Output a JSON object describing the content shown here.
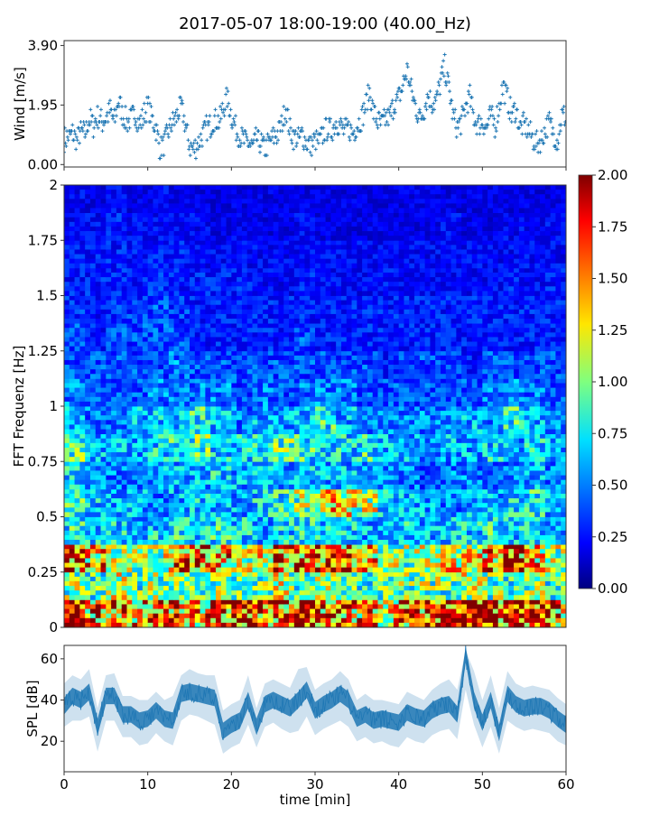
{
  "title": "2017-05-07 18:00-19:00 (40.00_Hz)",
  "chart_data": [
    {
      "type": "scatter",
      "ylabel": "Wind [m/s]",
      "xlim": [
        0,
        60
      ],
      "ylim": [
        -0.08,
        4.06
      ],
      "yticks": [
        0.0,
        1.95,
        3.9
      ],
      "ytick_labels": [
        "0.00",
        "1.95",
        "3.90"
      ],
      "xticks": [
        0,
        10,
        20,
        30,
        40,
        50,
        60
      ],
      "marker": "+",
      "color": "#1f77b4",
      "x_step_min": 0.5,
      "values": [
        0.8,
        0.9,
        1.0,
        0.8,
        1.1,
        1.0,
        1.5,
        1.3,
        1.6,
        1.4,
        1.5,
        1.8,
        1.4,
        2.1,
        1.6,
        1.4,
        1.5,
        1.7,
        1.3,
        1.6,
        1.9,
        1.5,
        1.2,
        0.5,
        0.7,
        1.1,
        1.4,
        1.6,
        1.9,
        1.3,
        0.6,
        0.5,
        0.7,
        0.9,
        1.2,
        1.3,
        1.5,
        1.4,
        1.8,
        2.2,
        1.6,
        1.2,
        0.9,
        0.8,
        0.7,
        0.6,
        0.8,
        0.7,
        0.5,
        0.7,
        0.9,
        1.0,
        1.3,
        1.9,
        1.1,
        0.9,
        0.8,
        1.0,
        0.7,
        0.6,
        0.8,
        0.7,
        1.0,
        1.2,
        1.1,
        1.4,
        1.3,
        1.1,
        1.2,
        1.0,
        1.3,
        1.5,
        1.9,
        2.4,
        1.7,
        1.4,
        1.3,
        1.5,
        1.6,
        2.0,
        2.2,
        2.6,
        3.1,
        2.4,
        1.9,
        1.5,
        1.8,
        2.3,
        2.0,
        2.1,
        2.7,
        3.2,
        2.5,
        1.6,
        1.2,
        1.4,
        1.9,
        2.2,
        1.5,
        1.3,
        1.4,
        1.2,
        1.6,
        1.3,
        1.9,
        2.6,
        2.1,
        1.6,
        1.8,
        1.2,
        1.3,
        1.1,
        0.9,
        0.7,
        0.8,
        1.1,
        1.4,
        1.0,
        0.8,
        1.6
      ]
    },
    {
      "type": "heatmap",
      "ylabel": "FFT Frequenz [Hz]",
      "xlim": [
        0,
        60
      ],
      "ylim": [
        0,
        2
      ],
      "yticks": [
        0,
        0.25,
        0.5,
        0.75,
        1,
        1.25,
        1.5,
        1.75,
        2
      ],
      "ytick_labels": [
        "0",
        "0.25",
        "0.5",
        "0.75",
        "1",
        "1.25",
        "1.5",
        "1.75",
        "2"
      ],
      "colormap": "jet",
      "clim": [
        0,
        2
      ],
      "colorbar_ticks": [
        "0.00",
        "0.25",
        "0.50",
        "0.75",
        "1.00",
        "1.25",
        "1.50",
        "1.75",
        "2.00"
      ],
      "time_bin_min": 2.5,
      "freq_bin_hz": 0.125,
      "values_by_freq_ascending": [
        [
          1.7,
          1.5,
          1.6,
          1.4,
          1.5,
          1.6,
          1.4,
          1.7,
          1.8,
          1.6,
          1.5,
          1.7,
          1.6,
          1.5,
          1.4,
          1.3,
          1.5,
          1.6,
          1.9,
          1.8,
          1.7,
          1.8,
          1.6,
          1.5
        ],
        [
          1.0,
          0.9,
          1.1,
          0.9,
          1.0,
          1.1,
          0.9,
          1.0,
          0.9,
          1.0,
          1.1,
          0.9,
          1.0,
          0.9,
          0.8,
          0.9,
          1.0,
          1.0,
          0.9,
          1.1,
          1.0,
          0.9,
          1.0,
          0.9
        ],
        [
          1.6,
          1.4,
          1.1,
          1.0,
          1.1,
          1.5,
          1.6,
          1.4,
          1.1,
          1.2,
          1.5,
          1.6,
          1.7,
          1.6,
          1.3,
          1.1,
          1.0,
          1.1,
          1.2,
          1.2,
          1.4,
          1.7,
          1.3,
          1.1
        ],
        [
          0.8,
          0.7,
          0.7,
          0.6,
          0.7,
          0.8,
          0.7,
          0.8,
          0.7,
          0.6,
          0.7,
          0.8,
          0.7,
          0.7,
          0.6,
          0.6,
          0.7,
          0.6,
          0.7,
          0.7,
          0.8,
          0.7,
          0.7,
          0.6
        ],
        [
          0.8,
          0.7,
          0.6,
          0.6,
          0.5,
          0.6,
          0.7,
          0.6,
          0.6,
          0.7,
          0.8,
          1.0,
          1.3,
          1.2,
          1.1,
          0.7,
          0.6,
          0.6,
          0.5,
          0.6,
          0.6,
          0.7,
          0.8,
          0.6
        ],
        [
          0.7,
          0.5,
          0.5,
          0.5,
          0.6,
          0.6,
          0.6,
          0.7,
          0.6,
          0.6,
          0.6,
          0.7,
          0.6,
          0.6,
          0.5,
          0.5,
          0.5,
          0.4,
          0.5,
          0.5,
          0.5,
          0.5,
          0.6,
          0.5
        ],
        [
          0.9,
          0.6,
          0.6,
          0.6,
          0.7,
          0.8,
          0.9,
          0.7,
          0.7,
          0.8,
          0.9,
          0.8,
          0.7,
          0.7,
          0.8,
          0.6,
          0.6,
          0.5,
          0.6,
          0.6,
          0.7,
          0.6,
          0.7,
          0.6
        ],
        [
          0.6,
          0.5,
          0.5,
          0.6,
          0.7,
          0.6,
          0.8,
          0.6,
          0.5,
          0.6,
          0.6,
          0.6,
          0.8,
          0.6,
          0.5,
          0.5,
          0.5,
          0.5,
          0.5,
          0.6,
          0.5,
          0.8,
          0.6,
          0.5
        ],
        [
          0.5,
          0.4,
          0.4,
          0.4,
          0.5,
          0.5,
          0.5,
          0.5,
          0.4,
          0.5,
          0.4,
          0.5,
          0.5,
          0.5,
          0.4,
          0.4,
          0.4,
          0.4,
          0.4,
          0.4,
          0.5,
          0.5,
          0.5,
          0.4
        ],
        [
          0.4,
          0.4,
          0.4,
          0.4,
          0.4,
          0.5,
          0.4,
          0.4,
          0.4,
          0.4,
          0.4,
          0.4,
          0.4,
          0.4,
          0.4,
          0.3,
          0.4,
          0.4,
          0.4,
          0.3,
          0.4,
          0.4,
          0.4,
          0.4
        ],
        [
          0.4,
          0.3,
          0.4,
          0.4,
          0.4,
          0.4,
          0.3,
          0.3,
          0.3,
          0.3,
          0.3,
          0.4,
          0.3,
          0.3,
          0.3,
          0.3,
          0.3,
          0.3,
          0.3,
          0.3,
          0.3,
          0.3,
          0.3,
          0.3
        ],
        [
          0.35,
          0.3,
          0.35,
          0.35,
          0.4,
          0.35,
          0.3,
          0.3,
          0.3,
          0.3,
          0.3,
          0.3,
          0.3,
          0.3,
          0.3,
          0.3,
          0.3,
          0.3,
          0.3,
          0.3,
          0.3,
          0.3,
          0.3,
          0.3
        ],
        [
          0.3,
          0.3,
          0.3,
          0.3,
          0.35,
          0.3,
          0.3,
          0.3,
          0.3,
          0.25,
          0.25,
          0.3,
          0.25,
          0.25,
          0.25,
          0.3,
          0.25,
          0.25,
          0.25,
          0.25,
          0.25,
          0.3,
          0.25,
          0.3
        ],
        [
          0.3,
          0.3,
          0.3,
          0.3,
          0.3,
          0.3,
          0.25,
          0.25,
          0.25,
          0.25,
          0.25,
          0.25,
          0.25,
          0.25,
          0.25,
          0.25,
          0.25,
          0.25,
          0.25,
          0.25,
          0.25,
          0.25,
          0.25,
          0.25
        ],
        [
          0.25,
          0.25,
          0.3,
          0.25,
          0.25,
          0.25,
          0.25,
          0.2,
          0.25,
          0.2,
          0.2,
          0.25,
          0.2,
          0.2,
          0.2,
          0.2,
          0.2,
          0.2,
          0.25,
          0.2,
          0.2,
          0.25,
          0.2,
          0.25
        ],
        [
          0.25,
          0.2,
          0.25,
          0.2,
          0.25,
          0.2,
          0.2,
          0.2,
          0.2,
          0.2,
          0.2,
          0.2,
          0.2,
          0.2,
          0.2,
          0.2,
          0.2,
          0.2,
          0.2,
          0.2,
          0.2,
          0.2,
          0.2,
          0.2
        ]
      ]
    },
    {
      "type": "line",
      "xlabel": "time [min]",
      "ylabel": "SPL [dB]",
      "xlim": [
        0,
        60
      ],
      "ylim": [
        5.2,
        66.5
      ],
      "yticks": [
        20,
        40,
        60
      ],
      "ytick_labels": [
        "20",
        "40",
        "60"
      ],
      "xticks": [
        0,
        10,
        20,
        30,
        40,
        50,
        60
      ],
      "xtick_labels": [
        "0",
        "10",
        "20",
        "30",
        "40",
        "50",
        "60"
      ],
      "color": "#1f77b4",
      "x_step_min": 1,
      "mean": [
        37,
        42,
        40,
        44,
        27,
        42,
        42,
        33,
        33,
        30,
        31,
        35,
        31,
        30,
        43,
        44,
        43,
        42,
        41,
        25,
        28,
        30,
        40,
        27,
        38,
        40,
        38,
        36,
        40,
        45,
        35,
        38,
        40,
        43,
        40,
        31,
        33,
        30,
        31,
        30,
        29,
        34,
        32,
        31,
        35,
        37,
        38,
        33,
        62,
        40,
        29,
        40,
        24,
        43,
        38,
        36,
        37,
        37,
        35,
        31,
        28
      ],
      "min": [
        27,
        30,
        30,
        32,
        15,
        30,
        30,
        22,
        22,
        18,
        19,
        24,
        20,
        18,
        30,
        33,
        32,
        30,
        28,
        14,
        17,
        19,
        28,
        17,
        27,
        29,
        26,
        24,
        25,
        32,
        23,
        26,
        28,
        30,
        27,
        20,
        22,
        19,
        20,
        18,
        17,
        22,
        20,
        19,
        23,
        25,
        26,
        21,
        45,
        28,
        17,
        27,
        14,
        30,
        27,
        25,
        26,
        25,
        24,
        20,
        18
      ],
      "max": [
        48,
        52,
        50,
        55,
        36,
        52,
        53,
        42,
        42,
        40,
        40,
        44,
        40,
        42,
        52,
        55,
        53,
        52,
        52,
        35,
        38,
        40,
        52,
        36,
        48,
        50,
        48,
        46,
        55,
        56,
        45,
        48,
        50,
        54,
        50,
        40,
        43,
        40,
        40,
        39,
        38,
        44,
        42,
        40,
        45,
        48,
        50,
        45,
        64,
        54,
        40,
        52,
        36,
        54,
        48,
        46,
        47,
        46,
        45,
        41,
        38
      ]
    }
  ]
}
